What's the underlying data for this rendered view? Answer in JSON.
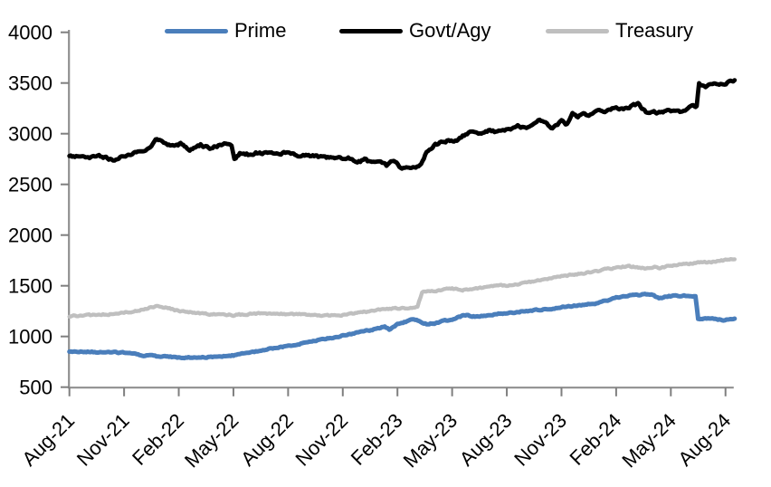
{
  "styles": {
    "background": "#ffffff",
    "axis_color": "#8f8f8f",
    "tick_color": "#7f7f7f",
    "text_color": "#000000"
  },
  "chart_data": {
    "type": "line",
    "title": "",
    "grid": false,
    "legend_position": "top",
    "x_axis": {
      "tick_labels": [
        "Aug-21",
        "Nov-21",
        "Feb-22",
        "May-22",
        "Aug-22",
        "Nov-22",
        "Feb-23",
        "May-23",
        "Aug-23",
        "Nov-23",
        "Feb-24",
        "May-24",
        "Aug-24"
      ],
      "tick_interval_months": 3,
      "label_rotation_deg": -45
    },
    "y_axis": {
      "min": 500,
      "max": 4000,
      "ticks": [
        500,
        1000,
        1500,
        2000,
        2500,
        3000,
        3500,
        4000
      ]
    },
    "x_domain_months": [
      0,
      36.5
    ],
    "series": [
      {
        "name": "Prime",
        "color": "#4a7ebb",
        "points": [
          [
            0,
            852
          ],
          [
            1,
            848
          ],
          [
            2,
            845
          ],
          [
            3,
            838
          ],
          [
            4,
            815
          ],
          [
            5,
            800
          ],
          [
            6,
            795
          ],
          [
            7,
            794
          ],
          [
            8,
            800
          ],
          [
            9,
            812
          ],
          [
            10,
            845
          ],
          [
            11,
            878
          ],
          [
            12,
            906
          ],
          [
            13,
            940
          ],
          [
            14,
            974
          ],
          [
            15,
            1008
          ],
          [
            16,
            1045
          ],
          [
            17,
            1080
          ],
          [
            17.3,
            1098
          ],
          [
            17.55,
            1070
          ],
          [
            18,
            1120
          ],
          [
            18.9,
            1172
          ],
          [
            19.2,
            1150
          ],
          [
            19.6,
            1126
          ],
          [
            20.1,
            1132
          ],
          [
            20.6,
            1155
          ],
          [
            21,
            1170
          ],
          [
            21.8,
            1215
          ],
          [
            22.1,
            1194
          ],
          [
            22.6,
            1202
          ],
          [
            23,
            1212
          ],
          [
            24,
            1232
          ],
          [
            25,
            1250
          ],
          [
            26,
            1268
          ],
          [
            27,
            1288
          ],
          [
            28,
            1308
          ],
          [
            29,
            1330
          ],
          [
            30,
            1380
          ],
          [
            31,
            1406
          ],
          [
            31.5,
            1416
          ],
          [
            32,
            1412
          ],
          [
            32.35,
            1372
          ],
          [
            32.9,
            1396
          ],
          [
            33.5,
            1402
          ],
          [
            34.35,
            1400
          ],
          [
            34.5,
            1176
          ],
          [
            35.2,
            1178
          ],
          [
            35.9,
            1160
          ],
          [
            36.2,
            1168
          ],
          [
            36.5,
            1176
          ]
        ]
      },
      {
        "name": "Govt/Agy",
        "color": "#000000",
        "points": [
          [
            0,
            2782
          ],
          [
            0.6,
            2772
          ],
          [
            1.1,
            2760
          ],
          [
            1.7,
            2775
          ],
          [
            2.4,
            2742
          ],
          [
            3,
            2782
          ],
          [
            3.6,
            2808
          ],
          [
            4.1,
            2838
          ],
          [
            4.5,
            2882
          ],
          [
            4.8,
            2948
          ],
          [
            5.1,
            2925
          ],
          [
            5.6,
            2880
          ],
          [
            6.1,
            2900
          ],
          [
            6.6,
            2846
          ],
          [
            7.2,
            2890
          ],
          [
            7.7,
            2855
          ],
          [
            8.1,
            2878
          ],
          [
            8.5,
            2902
          ],
          [
            8.9,
            2868
          ],
          [
            9.05,
            2752
          ],
          [
            9.35,
            2810
          ],
          [
            9.8,
            2795
          ],
          [
            10.3,
            2812
          ],
          [
            10.8,
            2800
          ],
          [
            11.3,
            2820
          ],
          [
            12,
            2806
          ],
          [
            12.6,
            2786
          ],
          [
            13.2,
            2780
          ],
          [
            13.8,
            2770
          ],
          [
            14.4,
            2762
          ],
          [
            15,
            2752
          ],
          [
            15.3,
            2772
          ],
          [
            15.8,
            2720
          ],
          [
            16.2,
            2742
          ],
          [
            16.6,
            2710
          ],
          [
            17,
            2740
          ],
          [
            17.4,
            2685
          ],
          [
            17.8,
            2738
          ],
          [
            18.1,
            2680
          ],
          [
            18.4,
            2652
          ],
          [
            18.7,
            2672
          ],
          [
            19,
            2668
          ],
          [
            19.3,
            2705
          ],
          [
            19.6,
            2815
          ],
          [
            20,
            2885
          ],
          [
            20.4,
            2912
          ],
          [
            20.8,
            2932
          ],
          [
            21.1,
            2918
          ],
          [
            21.5,
            2965
          ],
          [
            21.9,
            3010
          ],
          [
            22.3,
            3015
          ],
          [
            22.6,
            2995
          ],
          [
            23,
            3032
          ],
          [
            23.4,
            3018
          ],
          [
            23.8,
            3045
          ],
          [
            24.2,
            3038
          ],
          [
            24.6,
            3070
          ],
          [
            25,
            3058
          ],
          [
            25.4,
            3090
          ],
          [
            25.8,
            3140
          ],
          [
            26.2,
            3090
          ],
          [
            26.5,
            3045
          ],
          [
            27,
            3120
          ],
          [
            27.3,
            3090
          ],
          [
            27.6,
            3200
          ],
          [
            27.9,
            3160
          ],
          [
            28.2,
            3205
          ],
          [
            28.5,
            3170
          ],
          [
            29,
            3230
          ],
          [
            29.3,
            3215
          ],
          [
            29.7,
            3240
          ],
          [
            30,
            3255
          ],
          [
            30.4,
            3240
          ],
          [
            30.8,
            3270
          ],
          [
            31.2,
            3295
          ],
          [
            31.7,
            3203
          ],
          [
            32,
            3220
          ],
          [
            32.5,
            3205
          ],
          [
            33,
            3225
          ],
          [
            33.5,
            3215
          ],
          [
            34,
            3250
          ],
          [
            34.3,
            3270
          ],
          [
            34.42,
            3272
          ],
          [
            34.55,
            3490
          ],
          [
            34.9,
            3468
          ],
          [
            35.3,
            3482
          ],
          [
            35.8,
            3498
          ],
          [
            36.1,
            3508
          ],
          [
            36.5,
            3528
          ]
        ]
      },
      {
        "name": "Treasury",
        "color": "#bfbfbf",
        "points": [
          [
            0,
            1200
          ],
          [
            1,
            1208
          ],
          [
            2,
            1218
          ],
          [
            3,
            1238
          ],
          [
            4,
            1262
          ],
          [
            4.7,
            1298
          ],
          [
            5.2,
            1288
          ],
          [
            6,
            1252
          ],
          [
            7,
            1232
          ],
          [
            8,
            1220
          ],
          [
            9,
            1212
          ],
          [
            10,
            1222
          ],
          [
            11,
            1228
          ],
          [
            12,
            1220
          ],
          [
            13,
            1218
          ],
          [
            14,
            1205
          ],
          [
            15,
            1212
          ],
          [
            16,
            1232
          ],
          [
            16.8,
            1262
          ],
          [
            17.5,
            1272
          ],
          [
            18.5,
            1282
          ],
          [
            19.1,
            1292
          ],
          [
            19.35,
            1435
          ],
          [
            19.8,
            1448
          ],
          [
            20.2,
            1452
          ],
          [
            21,
            1470
          ],
          [
            21.5,
            1458
          ],
          [
            22,
            1466
          ],
          [
            23,
            1490
          ],
          [
            24,
            1505
          ],
          [
            25,
            1528
          ],
          [
            26,
            1560
          ],
          [
            27,
            1592
          ],
          [
            28,
            1620
          ],
          [
            29,
            1645
          ],
          [
            30,
            1678
          ],
          [
            30.5,
            1690
          ],
          [
            31,
            1688
          ],
          [
            31.8,
            1672
          ],
          [
            32.1,
            1686
          ],
          [
            32.4,
            1672
          ],
          [
            33,
            1700
          ],
          [
            34,
            1716
          ],
          [
            34.5,
            1724
          ],
          [
            35,
            1732
          ],
          [
            36,
            1752
          ],
          [
            36.5,
            1762
          ]
        ]
      }
    ]
  }
}
